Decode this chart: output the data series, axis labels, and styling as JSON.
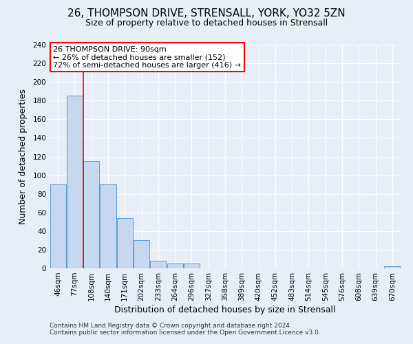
{
  "title": "26, THOMPSON DRIVE, STRENSALL, YORK, YO32 5ZN",
  "subtitle": "Size of property relative to detached houses in Strensall",
  "xlabel": "Distribution of detached houses by size in Strensall",
  "ylabel": "Number of detached properties",
  "bin_labels": [
    "46sqm",
    "77sqm",
    "108sqm",
    "140sqm",
    "171sqm",
    "202sqm",
    "233sqm",
    "264sqm",
    "296sqm",
    "327sqm",
    "358sqm",
    "389sqm",
    "420sqm",
    "452sqm",
    "483sqm",
    "514sqm",
    "545sqm",
    "576sqm",
    "608sqm",
    "639sqm",
    "670sqm"
  ],
  "bar_values": [
    90,
    185,
    115,
    90,
    54,
    30,
    8,
    5,
    5,
    0,
    0,
    0,
    0,
    0,
    0,
    0,
    0,
    0,
    0,
    0,
    2
  ],
  "bar_color": "#c5d8f0",
  "bar_edge_color": "#5b9bd5",
  "background_color": "#e8eef7",
  "grid_color": "#ffffff",
  "ylim": [
    0,
    240
  ],
  "yticks": [
    0,
    20,
    40,
    60,
    80,
    100,
    120,
    140,
    160,
    180,
    200,
    220,
    240
  ],
  "red_line_x": 1.5,
  "annotation_line1": "26 THOMPSON DRIVE: 90sqm",
  "annotation_line2": "← 26% of detached houses are smaller (152)",
  "annotation_line3": "72% of semi-detached houses are larger (416) →",
  "footnote1": "Contains HM Land Registry data © Crown copyright and database right 2024.",
  "footnote2": "Contains public sector information licensed under the Open Government Licence v3.0.",
  "title_fontsize": 11,
  "subtitle_fontsize": 9,
  "axis_label_fontsize": 9,
  "tick_fontsize": 7.5
}
